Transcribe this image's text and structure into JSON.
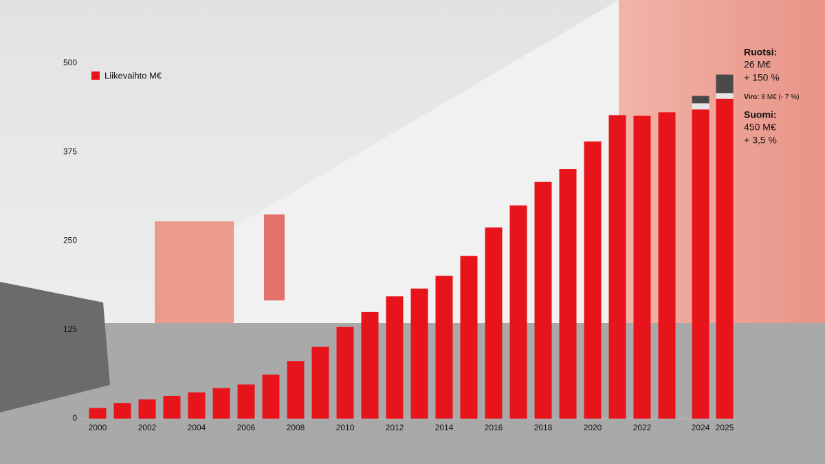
{
  "chart_data": {
    "type": "bar",
    "categories": [
      "2000",
      null,
      "2002",
      null,
      "2004",
      null,
      "2006",
      null,
      "2008",
      null,
      "2010",
      null,
      "2012",
      null,
      "2014",
      null,
      "2016",
      null,
      "2018",
      null,
      "2020",
      null,
      "2022",
      null,
      "2024",
      "2025"
    ],
    "series": [
      {
        "name": "Liikevaihto M€",
        "color": "#e8141c",
        "values": [
          15,
          22,
          27,
          32,
          37,
          43,
          48,
          62,
          81,
          101,
          129,
          150,
          172,
          183,
          201,
          229,
          269,
          300,
          333,
          351,
          390,
          427,
          426,
          431,
          435,
          450
        ]
      },
      {
        "color": "#e6e6e6",
        "values": [
          null,
          null,
          null,
          null,
          null,
          null,
          null,
          null,
          null,
          null,
          null,
          null,
          null,
          null,
          null,
          null,
          null,
          null,
          null,
          null,
          null,
          null,
          null,
          null,
          8.6,
          8
        ]
      },
      {
        "color": "#4a4a4a",
        "values": [
          null,
          null,
          null,
          null,
          null,
          null,
          null,
          null,
          null,
          null,
          null,
          null,
          null,
          null,
          null,
          null,
          null,
          null,
          null,
          null,
          null,
          null,
          null,
          null,
          10.4,
          26
        ]
      }
    ],
    "stacked": true,
    "ylim": [
      0,
      500
    ],
    "yticks": [
      0,
      125,
      250,
      375,
      500
    ],
    "grid": false,
    "annotations": [
      "Ruotsi:",
      "26 M€",
      "+ 150 %",
      "Viro:",
      "8 M€ (- 7 %)",
      "Suomi:",
      "450 M€",
      "+ 3,5 %"
    ]
  }
}
